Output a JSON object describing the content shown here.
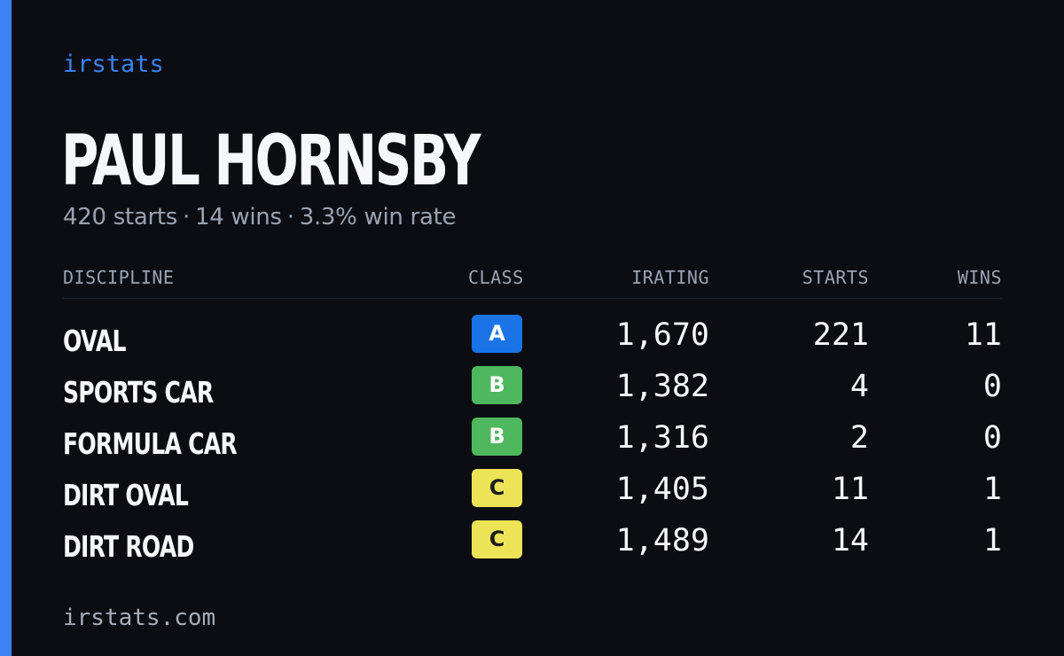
{
  "colors": {
    "accent": "#3b82f6",
    "background": "#0b0d13",
    "class_A": "#1a74e8",
    "class_B": "#4fb85e",
    "class_C": "#ece357"
  },
  "brand": "irstats",
  "player": {
    "name": "PAUL HORNSBY",
    "starts_text": "420 starts",
    "wins_text": "14 wins",
    "win_rate_text": "3.3% win rate",
    "separator": "·"
  },
  "table": {
    "headers": {
      "discipline": "DISCIPLINE",
      "class": "CLASS",
      "irating": "IRATING",
      "starts": "STARTS",
      "wins": "WINS"
    },
    "rows": [
      {
        "discipline": "OVAL",
        "class": "A",
        "irating": "1,670",
        "starts": "221",
        "wins": "11"
      },
      {
        "discipline": "SPORTS CAR",
        "class": "B",
        "irating": "1,382",
        "starts": "4",
        "wins": "0"
      },
      {
        "discipline": "FORMULA CAR",
        "class": "B",
        "irating": "1,316",
        "starts": "2",
        "wins": "0"
      },
      {
        "discipline": "DIRT OVAL",
        "class": "C",
        "irating": "1,405",
        "starts": "11",
        "wins": "1"
      },
      {
        "discipline": "DIRT ROAD",
        "class": "C",
        "irating": "1,489",
        "starts": "14",
        "wins": "1"
      }
    ]
  },
  "footer": {
    "url": "irstats.com"
  }
}
